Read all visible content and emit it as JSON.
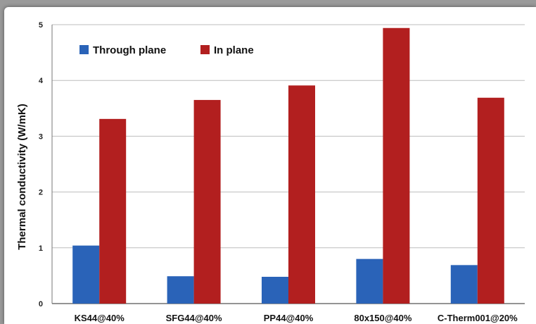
{
  "chart_data": {
    "type": "bar",
    "ylabel": "Thermal conductivity (W/mK)",
    "ylim": [
      0,
      5
    ],
    "yticks": [
      "0",
      "1",
      "2",
      "3",
      "4",
      "5"
    ],
    "grid": true,
    "legend_position": "top-left",
    "categories": [
      "KS44@40%",
      "SFG44@40%",
      "PP44@40%",
      "80x150@40%",
      "C-Therm001@20%"
    ],
    "series": [
      {
        "name": "Through plane",
        "color": "#2a63b8",
        "values": [
          1.04,
          0.49,
          0.48,
          0.8,
          0.69
        ]
      },
      {
        "name": "In plane",
        "color": "#b21f1f",
        "values": [
          3.31,
          3.65,
          3.91,
          4.94,
          3.69
        ]
      }
    ]
  }
}
